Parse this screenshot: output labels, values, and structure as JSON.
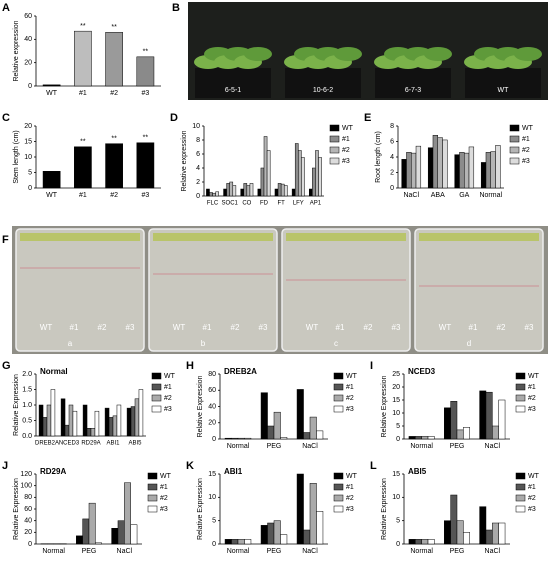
{
  "chart_data": [
    {
      "type": "bar",
      "panel": "A",
      "ylabel": "Relative expression",
      "categories": [
        "WT",
        "#1",
        "#2",
        "#3"
      ],
      "values": [
        1,
        47,
        46,
        25
      ],
      "colors": [
        "#000000",
        "#bdbdbd",
        "#9a9a9a",
        "#8a8a8a"
      ],
      "significance": [
        null,
        "**",
        "**",
        "**"
      ],
      "ylim": [
        0,
        60
      ],
      "yticks": [
        0,
        20,
        40,
        60
      ]
    },
    {
      "type": "bar",
      "panel": "C",
      "ylabel": "Stem length (cm)",
      "categories": [
        "WT",
        "#1",
        "#2",
        "#3"
      ],
      "values": [
        5.4,
        13.3,
        14.3,
        14.6
      ],
      "color": "#000000",
      "significance": [
        null,
        "**",
        "**",
        "**"
      ],
      "ylim": [
        0,
        20
      ],
      "yticks": [
        0,
        5,
        10,
        15,
        20
      ]
    },
    {
      "type": "bar",
      "panel": "D",
      "ylabel": "Relative expression",
      "categories": [
        "FLC",
        "SOC1",
        "CO",
        "FD",
        "FT",
        "LFY",
        "AP1"
      ],
      "series": [
        {
          "name": "WT",
          "color": "#000000",
          "values": [
            1,
            1,
            1,
            1,
            1,
            1,
            1
          ]
        },
        {
          "name": "#1",
          "color": "#8c8c8c",
          "values": [
            0.5,
            1.8,
            1.8,
            4,
            1.8,
            7.5,
            4
          ]
        },
        {
          "name": "#2",
          "color": "#b5b5b5",
          "values": [
            0.4,
            2,
            1.5,
            8.5,
            1.7,
            6.5,
            6.5
          ]
        },
        {
          "name": "#3",
          "color": "#dcdcdc",
          "values": [
            0.6,
            1.5,
            1.8,
            6.5,
            1.5,
            5.5,
            5.5
          ]
        }
      ],
      "ylim": [
        0,
        10
      ],
      "yticks": [
        0,
        2,
        4,
        6,
        8,
        10
      ]
    },
    {
      "type": "bar",
      "panel": "E",
      "ylabel": "Root length (cm)",
      "categories": [
        "NaCl",
        "ABA",
        "GA",
        "Normal"
      ],
      "series": [
        {
          "name": "WT",
          "color": "#000000",
          "values": [
            3.7,
            5.2,
            4.3,
            3.3
          ]
        },
        {
          "name": "#1",
          "color": "#8c8c8c",
          "values": [
            4.6,
            6.8,
            4.6,
            4.6
          ]
        },
        {
          "name": "#2",
          "color": "#b5b5b5",
          "values": [
            4.5,
            6.5,
            4.5,
            4.7
          ]
        },
        {
          "name": "#3",
          "color": "#dcdcdc",
          "values": [
            5.4,
            6.2,
            5.3,
            5.5
          ]
        }
      ],
      "ylim": [
        0,
        8
      ],
      "yticks": [
        0,
        2,
        4,
        6,
        8
      ]
    },
    {
      "type": "bar",
      "panel": "G",
      "title": "Normal",
      "ylabel": "Relative Expression",
      "categories": [
        "DREB2A",
        "NCED3",
        "RD29A",
        "ABI1",
        "ABI5"
      ],
      "series": [
        {
          "name": "WT",
          "color": "#000000",
          "values": [
            1,
            1.2,
            1,
            0.9,
            0.9
          ]
        },
        {
          "name": "#1",
          "color": "#555555",
          "values": [
            0.6,
            0.35,
            0.25,
            0.6,
            0.95
          ]
        },
        {
          "name": "#2",
          "color": "#aaaaaa",
          "values": [
            1,
            1,
            0.25,
            0.65,
            1.2
          ]
        },
        {
          "name": "#3",
          "color": "#ffffff",
          "values": [
            1.5,
            0.8,
            0.8,
            1,
            1.5
          ]
        }
      ],
      "ylim": [
        0,
        2
      ],
      "yticks": [
        {
          "value": 0,
          "label": "0.0"
        },
        {
          "value": 0.5,
          "label": "0.5"
        },
        {
          "value": 1,
          "label": "1.0"
        },
        {
          "value": 1.5,
          "label": "1.5"
        },
        {
          "value": 2,
          "label": "2.0"
        }
      ]
    },
    {
      "type": "bar",
      "panel": "H",
      "title": "DREB2A",
      "ylabel": "Relative Expression",
      "categories": [
        "Normal",
        "PEG",
        "NaCl"
      ],
      "series": [
        {
          "name": "WT",
          "color": "#000000",
          "values": [
            1,
            57,
            61
          ]
        },
        {
          "name": "#1",
          "color": "#555555",
          "values": [
            1,
            16,
            8
          ]
        },
        {
          "name": "#2",
          "color": "#aaaaaa",
          "values": [
            1,
            33,
            27
          ]
        },
        {
          "name": "#3",
          "color": "#ffffff",
          "values": [
            1,
            2,
            10
          ]
        }
      ],
      "ylim": [
        0,
        80
      ],
      "yticks": [
        0,
        20,
        40,
        60,
        80
      ]
    },
    {
      "type": "bar",
      "panel": "I",
      "title": "NCED3",
      "ylabel": "Relative Expression",
      "categories": [
        "Normal",
        "PEG",
        "NaCl"
      ],
      "series": [
        {
          "name": "WT",
          "color": "#000000",
          "values": [
            1,
            12,
            18.5
          ]
        },
        {
          "name": "#1",
          "color": "#555555",
          "values": [
            1,
            14.5,
            18
          ]
        },
        {
          "name": "#2",
          "color": "#aaaaaa",
          "values": [
            1,
            3.5,
            5
          ]
        },
        {
          "name": "#3",
          "color": "#ffffff",
          "values": [
            1,
            4.5,
            15
          ]
        }
      ],
      "ylim": [
        0,
        25
      ],
      "yticks": [
        0,
        5,
        10,
        15,
        20,
        25
      ]
    },
    {
      "type": "bar",
      "panel": "J",
      "title": "RD29A",
      "ylabel": "Relative Expression",
      "categories": [
        "Normal",
        "PEG",
        "NaCl"
      ],
      "series": [
        {
          "name": "WT",
          "color": "#000000",
          "values": [
            0.5,
            14,
            27
          ]
        },
        {
          "name": "#1",
          "color": "#555555",
          "values": [
            0.5,
            43,
            40
          ]
        },
        {
          "name": "#2",
          "color": "#aaaaaa",
          "values": [
            0.5,
            70,
            105
          ]
        },
        {
          "name": "#3",
          "color": "#ffffff",
          "values": [
            0.5,
            2,
            33
          ]
        }
      ],
      "ylim": [
        0,
        120
      ],
      "yticks": [
        0,
        20,
        40,
        60,
        80,
        100,
        120
      ]
    },
    {
      "type": "bar",
      "panel": "K",
      "title": "ABI1",
      "ylabel": "Relative Expression",
      "categories": [
        "Normal",
        "PEG",
        "NaCl"
      ],
      "series": [
        {
          "name": "WT",
          "color": "#000000",
          "values": [
            1,
            4,
            15
          ]
        },
        {
          "name": "#1",
          "color": "#555555",
          "values": [
            1,
            4.5,
            3
          ]
        },
        {
          "name": "#2",
          "color": "#aaaaaa",
          "values": [
            1,
            5,
            13
          ]
        },
        {
          "name": "#3",
          "color": "#ffffff",
          "values": [
            1,
            2,
            7
          ]
        }
      ],
      "ylim": [
        0,
        15
      ],
      "yticks": [
        0,
        5,
        10,
        15
      ]
    },
    {
      "type": "bar",
      "panel": "L",
      "title": "ABI5",
      "ylabel": "Relative Expression",
      "categories": [
        "Normal",
        "PEG",
        "NaCl"
      ],
      "series": [
        {
          "name": "WT",
          "color": "#000000",
          "values": [
            1,
            5,
            8
          ]
        },
        {
          "name": "#1",
          "color": "#555555",
          "values": [
            1,
            10.5,
            3
          ]
        },
        {
          "name": "#2",
          "color": "#aaaaaa",
          "values": [
            1,
            5,
            4.5
          ]
        },
        {
          "name": "#3",
          "color": "#ffffff",
          "values": [
            1,
            2.5,
            4.5
          ]
        }
      ],
      "ylim": [
        0,
        15
      ],
      "yticks": [
        0,
        5,
        10,
        15
      ]
    }
  ],
  "photos": [
    {
      "panel": "B",
      "labels": [
        "6-5-1",
        "10-6-2",
        "6-7-3",
        "WT"
      ]
    },
    {
      "panel": "F",
      "labels": [
        "WT",
        "#1",
        "#2",
        "#3"
      ],
      "plates": [
        "a",
        "b",
        "c",
        "d"
      ]
    }
  ]
}
